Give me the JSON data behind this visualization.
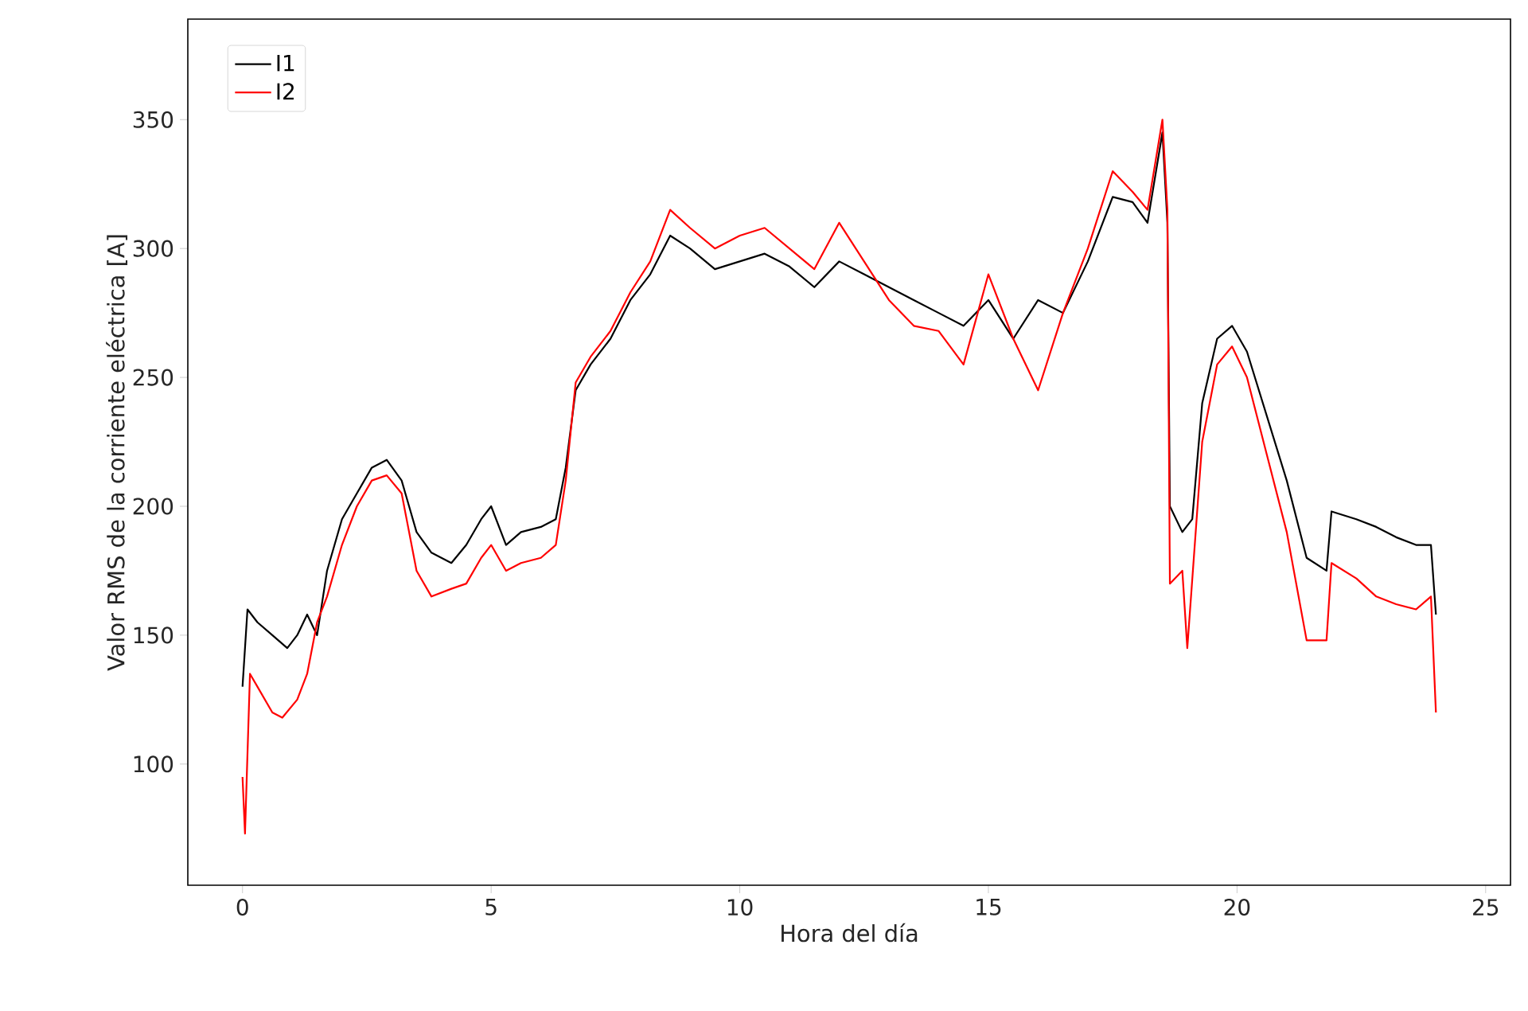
{
  "chart_data": {
    "type": "line",
    "xlabel": "Hora del día",
    "ylabel": "Valor RMS de la corriente eléctrica [A]",
    "xlim": [
      -1.1,
      25.5
    ],
    "ylim": [
      53,
      389
    ],
    "xticks": [
      0,
      5,
      10,
      15,
      20,
      25
    ],
    "yticks": [
      100,
      150,
      200,
      250,
      300,
      350
    ],
    "legend": "top left",
    "series": [
      {
        "name": "I1",
        "color": "#000000",
        "x": [
          0,
          0.1,
          0.3,
          0.6,
          0.9,
          1.1,
          1.3,
          1.5,
          1.7,
          2.0,
          2.3,
          2.6,
          2.9,
          3.2,
          3.5,
          3.8,
          4.2,
          4.5,
          4.8,
          5.0,
          5.3,
          5.6,
          6.0,
          6.3,
          6.5,
          6.7,
          7.0,
          7.4,
          7.8,
          8.2,
          8.6,
          9.0,
          9.5,
          10.0,
          10.5,
          11.0,
          11.5,
          12.0,
          12.5,
          13.0,
          13.5,
          14.0,
          14.5,
          15.0,
          15.5,
          16.0,
          16.5,
          17.0,
          17.5,
          17.9,
          18.2,
          18.5,
          18.6,
          18.65,
          18.9,
          19.1,
          19.3,
          19.6,
          19.9,
          20.2,
          20.6,
          21.0,
          21.4,
          21.8,
          21.9,
          22.4,
          22.8,
          23.2,
          23.6,
          23.9,
          24.0
        ],
        "values": [
          130,
          160,
          155,
          150,
          145,
          150,
          158,
          150,
          175,
          195,
          205,
          215,
          218,
          210,
          190,
          182,
          178,
          185,
          195,
          200,
          185,
          190,
          192,
          195,
          215,
          245,
          255,
          265,
          280,
          290,
          305,
          300,
          292,
          295,
          298,
          293,
          285,
          295,
          290,
          285,
          280,
          275,
          270,
          280,
          265,
          280,
          275,
          295,
          320,
          318,
          310,
          345,
          310,
          200,
          190,
          195,
          240,
          265,
          270,
          260,
          235,
          210,
          180,
          175,
          198,
          195,
          192,
          188,
          185,
          185,
          158
        ]
      },
      {
        "name": "I2",
        "color": "#ff0000",
        "x": [
          0,
          0.05,
          0.15,
          0.3,
          0.6,
          0.8,
          1.1,
          1.3,
          1.5,
          1.7,
          2.0,
          2.3,
          2.6,
          2.9,
          3.2,
          3.5,
          3.8,
          4.2,
          4.5,
          4.8,
          5.0,
          5.3,
          5.6,
          6.0,
          6.3,
          6.5,
          6.7,
          7.0,
          7.4,
          7.8,
          8.2,
          8.6,
          9.0,
          9.5,
          10.0,
          10.5,
          11.0,
          11.5,
          12.0,
          12.5,
          13.0,
          13.5,
          14.0,
          14.5,
          15.0,
          15.5,
          16.0,
          16.5,
          17.0,
          17.5,
          17.9,
          18.2,
          18.5,
          18.6,
          18.65,
          18.9,
          19.0,
          19.3,
          19.6,
          19.9,
          20.2,
          20.6,
          21.0,
          21.4,
          21.8,
          21.9,
          22.4,
          22.8,
          23.2,
          23.6,
          23.9,
          24.0
        ],
        "values": [
          95,
          73,
          135,
          130,
          120,
          118,
          125,
          135,
          155,
          165,
          185,
          200,
          210,
          212,
          205,
          175,
          165,
          168,
          170,
          180,
          185,
          175,
          178,
          180,
          185,
          210,
          248,
          258,
          268,
          283,
          295,
          315,
          308,
          300,
          305,
          308,
          300,
          292,
          310,
          295,
          280,
          270,
          268,
          255,
          290,
          265,
          245,
          275,
          300,
          330,
          322,
          315,
          350,
          315,
          170,
          175,
          145,
          225,
          255,
          262,
          250,
          220,
          190,
          148,
          148,
          178,
          172,
          165,
          162,
          160,
          165,
          120
        ]
      }
    ]
  }
}
